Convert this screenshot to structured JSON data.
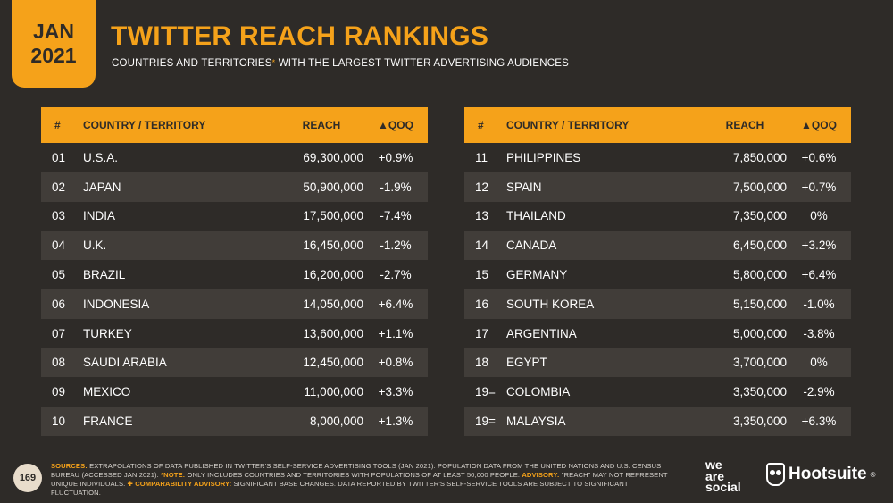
{
  "date": {
    "month": "JAN",
    "year": "2021"
  },
  "title": "TWITTER REACH RANKINGS",
  "subtitle": {
    "text": "COUNTRIES AND TERRITORIES",
    "asterisk": "*",
    "text_after": " WITH THE LARGEST TWITTER ADVERTISING AUDIENCES"
  },
  "columns": {
    "num": "#",
    "country": "COUNTRY / TERRITORY",
    "reach": "REACH",
    "qoq": "▲QOQ"
  },
  "rows_left": [
    {
      "rank": "01",
      "country": "U.S.A.",
      "reach": "69,300,000",
      "qoq": "+0.9%"
    },
    {
      "rank": "02",
      "country": "JAPAN",
      "reach": "50,900,000",
      "qoq": "-1.9%"
    },
    {
      "rank": "03",
      "country": "INDIA",
      "reach": "17,500,000",
      "qoq": "-7.4%"
    },
    {
      "rank": "04",
      "country": "U.K.",
      "reach": "16,450,000",
      "qoq": "-1.2%"
    },
    {
      "rank": "05",
      "country": "BRAZIL",
      "reach": "16,200,000",
      "qoq": "-2.7%"
    },
    {
      "rank": "06",
      "country": "INDONESIA",
      "reach": "14,050,000",
      "qoq": "+6.4%"
    },
    {
      "rank": "07",
      "country": "TURKEY",
      "reach": "13,600,000",
      "qoq": "+1.1%"
    },
    {
      "rank": "08",
      "country": "SAUDI ARABIA",
      "reach": "12,450,000",
      "qoq": "+0.8%"
    },
    {
      "rank": "09",
      "country": "MEXICO",
      "reach": "11,000,000",
      "qoq": "+3.3%"
    },
    {
      "rank": "10",
      "country": "FRANCE",
      "reach": "8,000,000",
      "qoq": "+1.3%"
    }
  ],
  "rows_right": [
    {
      "rank": "11",
      "country": "PHILIPPINES",
      "reach": "7,850,000",
      "qoq": "+0.6%"
    },
    {
      "rank": "12",
      "country": "SPAIN",
      "reach": "7,500,000",
      "qoq": "+0.7%"
    },
    {
      "rank": "13",
      "country": "THAILAND",
      "reach": "7,350,000",
      "qoq": "0%"
    },
    {
      "rank": "14",
      "country": "CANADA",
      "reach": "6,450,000",
      "qoq": "+3.2%"
    },
    {
      "rank": "15",
      "country": "GERMANY",
      "reach": "5,800,000",
      "qoq": "+6.4%"
    },
    {
      "rank": "16",
      "country": "SOUTH KOREA",
      "reach": "5,150,000",
      "qoq": "-1.0%"
    },
    {
      "rank": "17",
      "country": "ARGENTINA",
      "reach": "5,000,000",
      "qoq": "-3.8%"
    },
    {
      "rank": "18",
      "country": "EGYPT",
      "reach": "3,700,000",
      "qoq": "0%"
    },
    {
      "rank": "19=",
      "country": "COLOMBIA",
      "reach": "3,350,000",
      "qoq": "-2.9%"
    },
    {
      "rank": "19=",
      "country": "MALAYSIA",
      "reach": "3,350,000",
      "qoq": "+6.3%"
    }
  ],
  "footer": {
    "page_number": "169",
    "sources_label": "SOURCES:",
    "sources_text": " EXTRAPOLATIONS OF DATA PUBLISHED IN TWITTER'S SELF-SERVICE ADVERTISING TOOLS (JAN 2021). POPULATION DATA FROM THE UNITED NATIONS AND U.S. CENSUS BUREAU (ACCESSED JAN 2021). ",
    "note_label": "*NOTE:",
    "note_text": " ONLY INCLUDES COUNTRIES AND TERRITORIES WITH POPULATIONS OF AT LEAST 50,000 PEOPLE. ",
    "advisory_label": "ADVISORY:",
    "advisory_text": " \"REACH\" MAY NOT REPRESENT UNIQUE INDIVIDUALS. ",
    "comparability_label": "✚ COMPARABILITY ADVISORY:",
    "comparability_text": " SIGNIFICANT BASE CHANGES. DATA REPORTED BY TWITTER'S SELF-SERVICE TOOLS ARE SUBJECT TO SIGNIFICANT FLUCTUATION."
  },
  "logos": {
    "we_are_social": [
      "we",
      "are",
      "social"
    ],
    "hootsuite": "Hootsuite",
    "hootsuite_mark": "®"
  },
  "colors": {
    "accent": "#f5a21a",
    "background": "#2e2b28",
    "row_alt": "#413d39"
  }
}
